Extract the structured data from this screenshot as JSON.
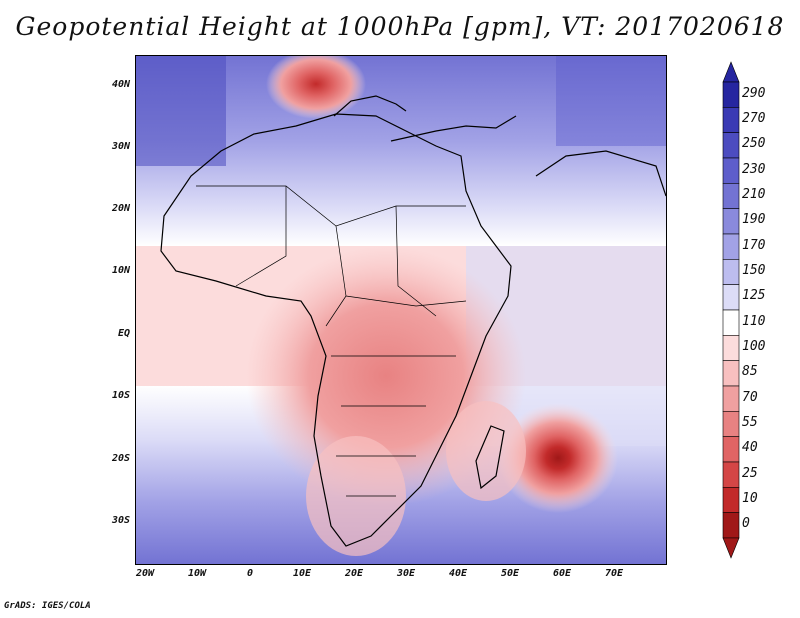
{
  "title": "Geopotential Height at 1000hPa [gpm], VT: 2017020618",
  "footer": "GrADS: IGES/COLA",
  "map": {
    "lat_labels": [
      "40N",
      "30N",
      "20N",
      "10N",
      "EQ",
      "10S",
      "20S",
      "30S"
    ],
    "lon_labels": [
      "20W",
      "10W",
      "0",
      "10E",
      "20E",
      "30E",
      "40E",
      "50E",
      "60E",
      "70E"
    ]
  },
  "legend": {
    "levels": [
      "290",
      "270",
      "250",
      "230",
      "210",
      "190",
      "170",
      "150",
      "125",
      "110",
      "100",
      "85",
      "70",
      "55",
      "40",
      "25",
      "10",
      "0"
    ],
    "colors": [
      "#2626a0",
      "#3a3ab4",
      "#4c4cc0",
      "#5e5ecb",
      "#7373d3",
      "#8a8adc",
      "#a2a2e6",
      "#bdbdef",
      "#dcdcf7",
      "#ffffff",
      "#fcdcdc",
      "#f8c0c0",
      "#f0a0a0",
      "#e88282",
      "#e06464",
      "#d44646",
      "#c22a2a",
      "#a01818"
    ]
  }
}
